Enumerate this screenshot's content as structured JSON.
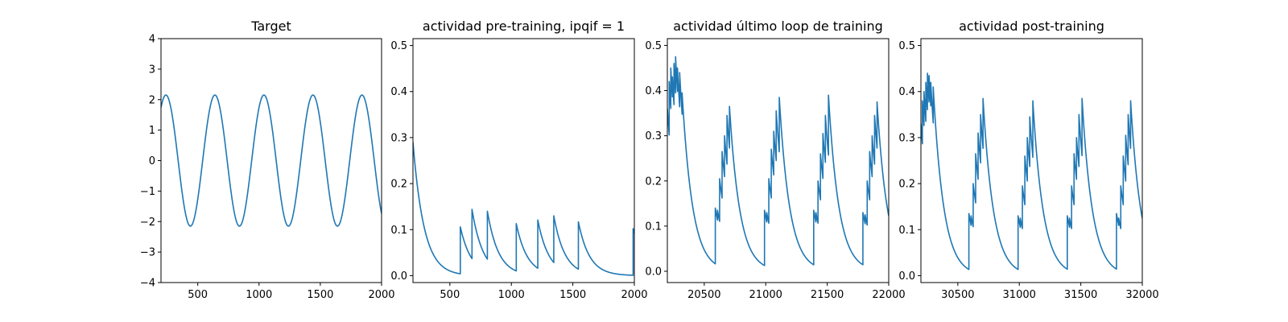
{
  "chart_data": [
    {
      "type": "line",
      "title": "Target",
      "xlim": [
        200,
        2000
      ],
      "ylim": [
        -4,
        4
      ],
      "xticks": [
        500,
        1000,
        1500,
        2000
      ],
      "yticks": [
        -4,
        -3,
        -2,
        -1,
        0,
        1,
        2,
        3,
        4
      ],
      "xtick_labels": [
        "500",
        "1000",
        "1500",
        "2000"
      ],
      "ytick_labels": [
        "−4",
        "−3",
        "−2",
        "−1",
        "0",
        "1",
        "2",
        "3",
        "4"
      ],
      "color": "#1f77b4",
      "series": [
        {
          "kind": "sine",
          "amplitude": 2.15,
          "period": 400,
          "peak_x": [
            240,
            640,
            1040,
            1440,
            1840
          ],
          "x_range": [
            200,
            2000
          ]
        }
      ]
    },
    {
      "type": "line",
      "title": "actividad pre-training, ipqif = 1",
      "xlim": [
        200,
        2000
      ],
      "ylim": [
        -0.015,
        0.515
      ],
      "xticks": [
        500,
        1000,
        1500,
        2000
      ],
      "yticks": [
        0.0,
        0.1,
        0.2,
        0.3,
        0.4,
        0.5
      ],
      "xtick_labels": [
        "500",
        "1000",
        "1500",
        "2000"
      ],
      "ytick_labels": [
        "0.0",
        "0.1",
        "0.2",
        "0.3",
        "0.4",
        "0.5"
      ],
      "color": "#1f77b4",
      "series": [
        {
          "kind": "decay",
          "start_x": 200,
          "start_y": 0.29,
          "tau": 90,
          "spikes": [
            {
              "x": 585,
              "y": 0.106
            },
            {
              "x": 680,
              "y": 0.144
            },
            {
              "x": 805,
              "y": 0.14
            },
            {
              "x": 1040,
              "y": 0.113
            },
            {
              "x": 1215,
              "y": 0.121
            },
            {
              "x": 1345,
              "y": 0.13
            },
            {
              "x": 1545,
              "y": 0.117
            },
            {
              "x": 1990,
              "y": 0.102
            }
          ],
          "end_x": 2000
        }
      ]
    },
    {
      "type": "line",
      "title": "actividad último loop de training",
      "xlim": [
        20200,
        22000
      ],
      "ylim": [
        -0.025,
        0.515
      ],
      "xticks": [
        20500,
        21000,
        21500,
        22000
      ],
      "yticks": [
        0.0,
        0.1,
        0.2,
        0.3,
        0.4,
        0.5
      ],
      "xtick_labels": [
        "20500",
        "21000",
        "21500",
        "22000"
      ],
      "ytick_labels": [
        "0.0",
        "0.1",
        "0.2",
        "0.3",
        "0.4",
        "0.5"
      ],
      "color": "#1f77b4",
      "series": [
        {
          "kind": "decay",
          "start_x": 20200,
          "start_y": 0.36,
          "tau": 85,
          "spikes": [
            {
              "x": 20215,
              "y": 0.42
            },
            {
              "x": 20228,
              "y": 0.45
            },
            {
              "x": 20241,
              "y": 0.43
            },
            {
              "x": 20254,
              "y": 0.46
            },
            {
              "x": 20267,
              "y": 0.475
            },
            {
              "x": 20282,
              "y": 0.45
            },
            {
              "x": 20300,
              "y": 0.44
            },
            {
              "x": 20320,
              "y": 0.395
            },
            {
              "x": 20590,
              "y": 0.14
            },
            {
              "x": 20608,
              "y": 0.135
            },
            {
              "x": 20625,
              "y": 0.205
            },
            {
              "x": 20645,
              "y": 0.265
            },
            {
              "x": 20665,
              "y": 0.3
            },
            {
              "x": 20685,
              "y": 0.345
            },
            {
              "x": 20705,
              "y": 0.365
            },
            {
              "x": 20990,
              "y": 0.135
            },
            {
              "x": 21008,
              "y": 0.13
            },
            {
              "x": 21025,
              "y": 0.205
            },
            {
              "x": 21045,
              "y": 0.27
            },
            {
              "x": 21065,
              "y": 0.31
            },
            {
              "x": 21085,
              "y": 0.355
            },
            {
              "x": 21110,
              "y": 0.385
            },
            {
              "x": 21390,
              "y": 0.135
            },
            {
              "x": 21408,
              "y": 0.13
            },
            {
              "x": 21425,
              "y": 0.2
            },
            {
              "x": 21445,
              "y": 0.26
            },
            {
              "x": 21465,
              "y": 0.305
            },
            {
              "x": 21485,
              "y": 0.345
            },
            {
              "x": 21510,
              "y": 0.39
            },
            {
              "x": 21790,
              "y": 0.13
            },
            {
              "x": 21808,
              "y": 0.125
            },
            {
              "x": 21825,
              "y": 0.2
            },
            {
              "x": 21845,
              "y": 0.265
            },
            {
              "x": 21865,
              "y": 0.3
            },
            {
              "x": 21885,
              "y": 0.345
            },
            {
              "x": 21905,
              "y": 0.375
            }
          ],
          "end_x": 22000
        }
      ]
    },
    {
      "type": "line",
      "title": "actividad post-training",
      "xlim": [
        30200,
        32000
      ],
      "ylim": [
        -0.015,
        0.515
      ],
      "xticks": [
        30500,
        31000,
        31500,
        32000
      ],
      "yticks": [
        0.0,
        0.1,
        0.2,
        0.3,
        0.4,
        0.5
      ],
      "xtick_labels": [
        "30500",
        "31000",
        "31500",
        "32000"
      ],
      "ytick_labels": [
        "0.0",
        "0.1",
        "0.2",
        "0.3",
        "0.4",
        "0.5"
      ],
      "color": "#1f77b4",
      "series": [
        {
          "kind": "decay",
          "start_x": 30200,
          "start_y": 0.33,
          "tau": 85,
          "spikes": [
            {
              "x": 30212,
              "y": 0.38
            },
            {
              "x": 30225,
              "y": 0.4
            },
            {
              "x": 30240,
              "y": 0.42
            },
            {
              "x": 30253,
              "y": 0.44
            },
            {
              "x": 30266,
              "y": 0.435
            },
            {
              "x": 30280,
              "y": 0.42
            },
            {
              "x": 30300,
              "y": 0.41
            },
            {
              "x": 30590,
              "y": 0.135
            },
            {
              "x": 30608,
              "y": 0.13
            },
            {
              "x": 30625,
              "y": 0.2
            },
            {
              "x": 30645,
              "y": 0.265
            },
            {
              "x": 30665,
              "y": 0.31
            },
            {
              "x": 30685,
              "y": 0.35
            },
            {
              "x": 30705,
              "y": 0.385
            },
            {
              "x": 30990,
              "y": 0.13
            },
            {
              "x": 31008,
              "y": 0.125
            },
            {
              "x": 31025,
              "y": 0.195
            },
            {
              "x": 31045,
              "y": 0.26
            },
            {
              "x": 31065,
              "y": 0.3
            },
            {
              "x": 31085,
              "y": 0.345
            },
            {
              "x": 31110,
              "y": 0.38
            },
            {
              "x": 31390,
              "y": 0.13
            },
            {
              "x": 31408,
              "y": 0.125
            },
            {
              "x": 31425,
              "y": 0.195
            },
            {
              "x": 31445,
              "y": 0.265
            },
            {
              "x": 31465,
              "y": 0.3
            },
            {
              "x": 31485,
              "y": 0.35
            },
            {
              "x": 31510,
              "y": 0.385
            },
            {
              "x": 31790,
              "y": 0.135
            },
            {
              "x": 31808,
              "y": 0.125
            },
            {
              "x": 31825,
              "y": 0.195
            },
            {
              "x": 31845,
              "y": 0.26
            },
            {
              "x": 31865,
              "y": 0.305
            },
            {
              "x": 31885,
              "y": 0.35
            },
            {
              "x": 31905,
              "y": 0.38
            }
          ],
          "end_x": 32000
        }
      ]
    }
  ]
}
